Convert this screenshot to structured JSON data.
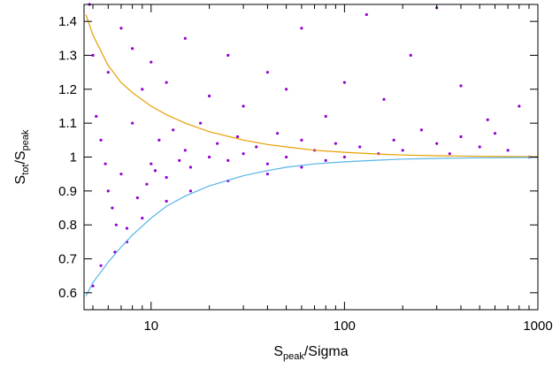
{
  "chart_data": {
    "type": "scatter",
    "title": "",
    "xlabel": {
      "base": "S",
      "sub": "peak",
      "rest": "/Sigma"
    },
    "ylabel": {
      "part1": "S",
      "sub1": "tot",
      "slash": "/S",
      "sub2": "peak"
    },
    "x_scale": "log",
    "xlim": [
      4.5,
      1000
    ],
    "ylim": [
      0.55,
      1.45
    ],
    "x_ticks": [
      {
        "value": 10,
        "label": "10"
      },
      {
        "value": 100,
        "label": "100"
      },
      {
        "value": 1000,
        "label": "1000"
      }
    ],
    "y_ticks": [
      {
        "value": 0.6,
        "label": "0.6"
      },
      {
        "value": 0.7,
        "label": "0.7"
      },
      {
        "value": 0.8,
        "label": "0.8"
      },
      {
        "value": 0.9,
        "label": "0.9"
      },
      {
        "value": 1.0,
        "label": "1"
      },
      {
        "value": 1.1,
        "label": "1.1"
      },
      {
        "value": 1.2,
        "label": "1.2"
      },
      {
        "value": 1.3,
        "label": "1.3"
      },
      {
        "value": 1.4,
        "label": "1.4"
      }
    ],
    "grid": false,
    "legend": "none",
    "colors": {
      "points": "#9400d3",
      "upper_envelope": "#e69f00",
      "lower_envelope": "#56b4e9"
    },
    "series": [
      {
        "kind": "points",
        "points": [
          [
            4.8,
            1.45
          ],
          [
            5.0,
            1.3
          ],
          [
            5.2,
            1.12
          ],
          [
            5.5,
            1.05
          ],
          [
            5.8,
            0.98
          ],
          [
            6.0,
            0.9
          ],
          [
            6.3,
            0.85
          ],
          [
            6.6,
            0.8
          ],
          [
            7.0,
            0.95
          ],
          [
            7.5,
            0.75
          ],
          [
            8.0,
            1.1
          ],
          [
            8.5,
            0.88
          ],
          [
            9.0,
            1.2
          ],
          [
            9.5,
            0.92
          ],
          [
            10.0,
            0.98
          ],
          [
            10.5,
            0.96
          ],
          [
            11.0,
            1.05
          ],
          [
            12.0,
            0.94
          ],
          [
            13.0,
            1.08
          ],
          [
            14.0,
            0.99
          ],
          [
            15.0,
            1.02
          ],
          [
            16.0,
            0.97
          ],
          [
            18.0,
            1.1
          ],
          [
            20.0,
            1.0
          ],
          [
            22.0,
            1.04
          ],
          [
            25.0,
            0.99
          ],
          [
            28.0,
            1.06
          ],
          [
            30.0,
            1.01
          ],
          [
            35.0,
            1.03
          ],
          [
            40.0,
            0.98
          ],
          [
            45.0,
            1.07
          ],
          [
            50.0,
            1.0
          ],
          [
            60.0,
            1.05
          ],
          [
            70.0,
            1.02
          ],
          [
            80.0,
            0.99
          ],
          [
            90.0,
            1.04
          ],
          [
            100.0,
            1.0
          ],
          [
            120.0,
            1.03
          ],
          [
            150.0,
            1.01
          ],
          [
            180.0,
            1.05
          ],
          [
            200.0,
            1.02
          ],
          [
            250.0,
            1.08
          ],
          [
            300.0,
            1.04
          ],
          [
            350.0,
            1.01
          ],
          [
            400.0,
            1.06
          ],
          [
            500.0,
            1.03
          ],
          [
            600.0,
            1.07
          ],
          [
            700.0,
            1.02
          ],
          [
            800.0,
            1.15
          ],
          [
            900.0,
            1.0
          ],
          [
            5.0,
            0.62
          ],
          [
            5.5,
            0.68
          ],
          [
            6.5,
            0.72
          ],
          [
            7.5,
            0.79
          ],
          [
            9.0,
            0.82
          ],
          [
            12.0,
            0.87
          ],
          [
            16.0,
            0.9
          ],
          [
            25.0,
            0.93
          ],
          [
            40.0,
            0.95
          ],
          [
            60.0,
            0.97
          ],
          [
            6.0,
            1.25
          ],
          [
            7.0,
            1.38
          ],
          [
            8.0,
            1.32
          ],
          [
            10.0,
            1.28
          ],
          [
            12.0,
            1.22
          ],
          [
            15.0,
            1.35
          ],
          [
            20.0,
            1.18
          ],
          [
            25.0,
            1.3
          ],
          [
            30.0,
            1.15
          ],
          [
            40.0,
            1.25
          ],
          [
            50.0,
            1.2
          ],
          [
            60.0,
            1.38
          ],
          [
            80.0,
            1.12
          ],
          [
            100.0,
            1.22
          ],
          [
            130.0,
            1.42
          ],
          [
            160.0,
            1.17
          ],
          [
            220.0,
            1.3
          ],
          [
            300.0,
            1.44
          ],
          [
            400.0,
            1.21
          ],
          [
            550.0,
            1.11
          ]
        ]
      },
      {
        "kind": "line",
        "name": "",
        "role": "upper envelope",
        "points": [
          [
            4.6,
            1.42
          ],
          [
            5,
            1.36
          ],
          [
            6,
            1.27
          ],
          [
            7,
            1.22
          ],
          [
            8,
            1.19
          ],
          [
            10,
            1.15
          ],
          [
            12,
            1.125
          ],
          [
            15,
            1.1
          ],
          [
            20,
            1.075
          ],
          [
            30,
            1.05
          ],
          [
            40,
            1.037
          ],
          [
            50,
            1.03
          ],
          [
            70,
            1.02
          ],
          [
            100,
            1.014
          ],
          [
            150,
            1.009
          ],
          [
            200,
            1.006
          ],
          [
            300,
            1.004
          ],
          [
            500,
            1.002
          ],
          [
            1000,
            1.001
          ]
        ]
      },
      {
        "kind": "line",
        "name": "",
        "role": "lower envelope",
        "points": [
          [
            4.6,
            0.59
          ],
          [
            5,
            0.63
          ],
          [
            6,
            0.69
          ],
          [
            7,
            0.735
          ],
          [
            8,
            0.77
          ],
          [
            10,
            0.82
          ],
          [
            12,
            0.855
          ],
          [
            15,
            0.885
          ],
          [
            20,
            0.915
          ],
          [
            30,
            0.945
          ],
          [
            40,
            0.96
          ],
          [
            50,
            0.97
          ],
          [
            70,
            0.98
          ],
          [
            100,
            0.986
          ],
          [
            150,
            0.991
          ],
          [
            200,
            0.994
          ],
          [
            300,
            0.996
          ],
          [
            500,
            0.998
          ],
          [
            1000,
            0.999
          ]
        ]
      }
    ]
  }
}
